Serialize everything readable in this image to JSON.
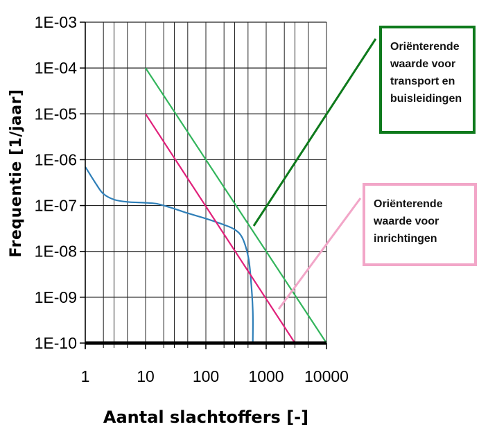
{
  "chart_data": {
    "type": "line",
    "xlabel": "Aantal slachtoffers [-]",
    "ylabel": "Frequentie [1/jaar]",
    "x_scale": "log",
    "y_scale": "log",
    "xlim": [
      1,
      10000
    ],
    "ylim": [
      1e-10,
      0.001
    ],
    "x_ticks": [
      1,
      10,
      100,
      1000,
      10000
    ],
    "x_tick_labels": [
      "1",
      "10",
      "100",
      "1000",
      "10000"
    ],
    "y_ticks": [
      1e-10,
      1e-09,
      1e-08,
      1e-07,
      1e-06,
      1e-05,
      0.0001,
      0.001
    ],
    "y_tick_labels": [
      "1E-10",
      "1E-09",
      "1E-08",
      "1E-07",
      "1E-06",
      "1E-05",
      "1E-04",
      "1E-03"
    ],
    "grid": true,
    "series": [
      {
        "color": "#2f7fb8",
        "x": [
          1,
          1.5,
          2,
          3,
          5,
          10,
          15,
          20,
          30,
          50,
          100,
          200,
          300,
          400,
          500,
          550,
          600,
          600
        ],
        "y": [
          7e-07,
          3e-07,
          1.8e-07,
          1.35e-07,
          1.2e-07,
          1.15e-07,
          1.1e-07,
          1e-07,
          8.5e-08,
          6.8e-08,
          5.2e-08,
          3.8e-08,
          3e-08,
          2e-08,
          8e-09,
          3e-09,
          5e-10,
          1e-10
        ]
      },
      {
        "color": "#e0207a",
        "x": [
          10,
          3000
        ],
        "y": [
          1e-05,
          1e-10
        ]
      },
      {
        "color": "#33b55c",
        "x": [
          10,
          10000
        ],
        "y": [
          0.0001,
          1e-10
        ]
      }
    ],
    "annotations": [
      {
        "id": "green",
        "color": "#0e7a1c",
        "lines": [
          "Oriënterende",
          "waarde voor",
          "transport en",
          "buisleidingen"
        ]
      },
      {
        "id": "pink",
        "color": "#f2a6c8",
        "lines": [
          "Oriënterende",
          "waarde voor",
          "inrichtingen"
        ]
      }
    ]
  }
}
